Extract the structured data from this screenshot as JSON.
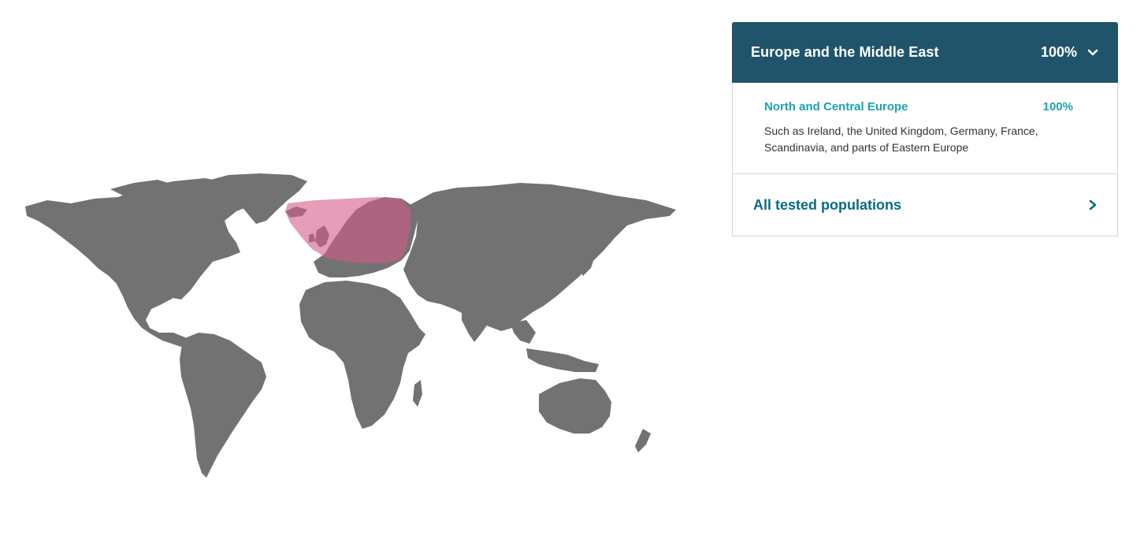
{
  "map": {
    "highlight_color": "#d35c8c"
  },
  "panel": {
    "region": {
      "title": "Europe and the Middle East",
      "percent": "100%"
    },
    "subregion": {
      "title": "North and Central Europe",
      "percent": "100%",
      "description": "Such as Ireland, the United Kingdom, Germany, France, Scandinavia, and parts of Eastern Europe"
    },
    "all_populations": {
      "label": "All tested populations"
    }
  },
  "colors": {
    "header_bg": "#1f546b",
    "accent_teal": "#1aa3b0",
    "link_blue": "#0b6b85",
    "land_gray": "#727272"
  }
}
